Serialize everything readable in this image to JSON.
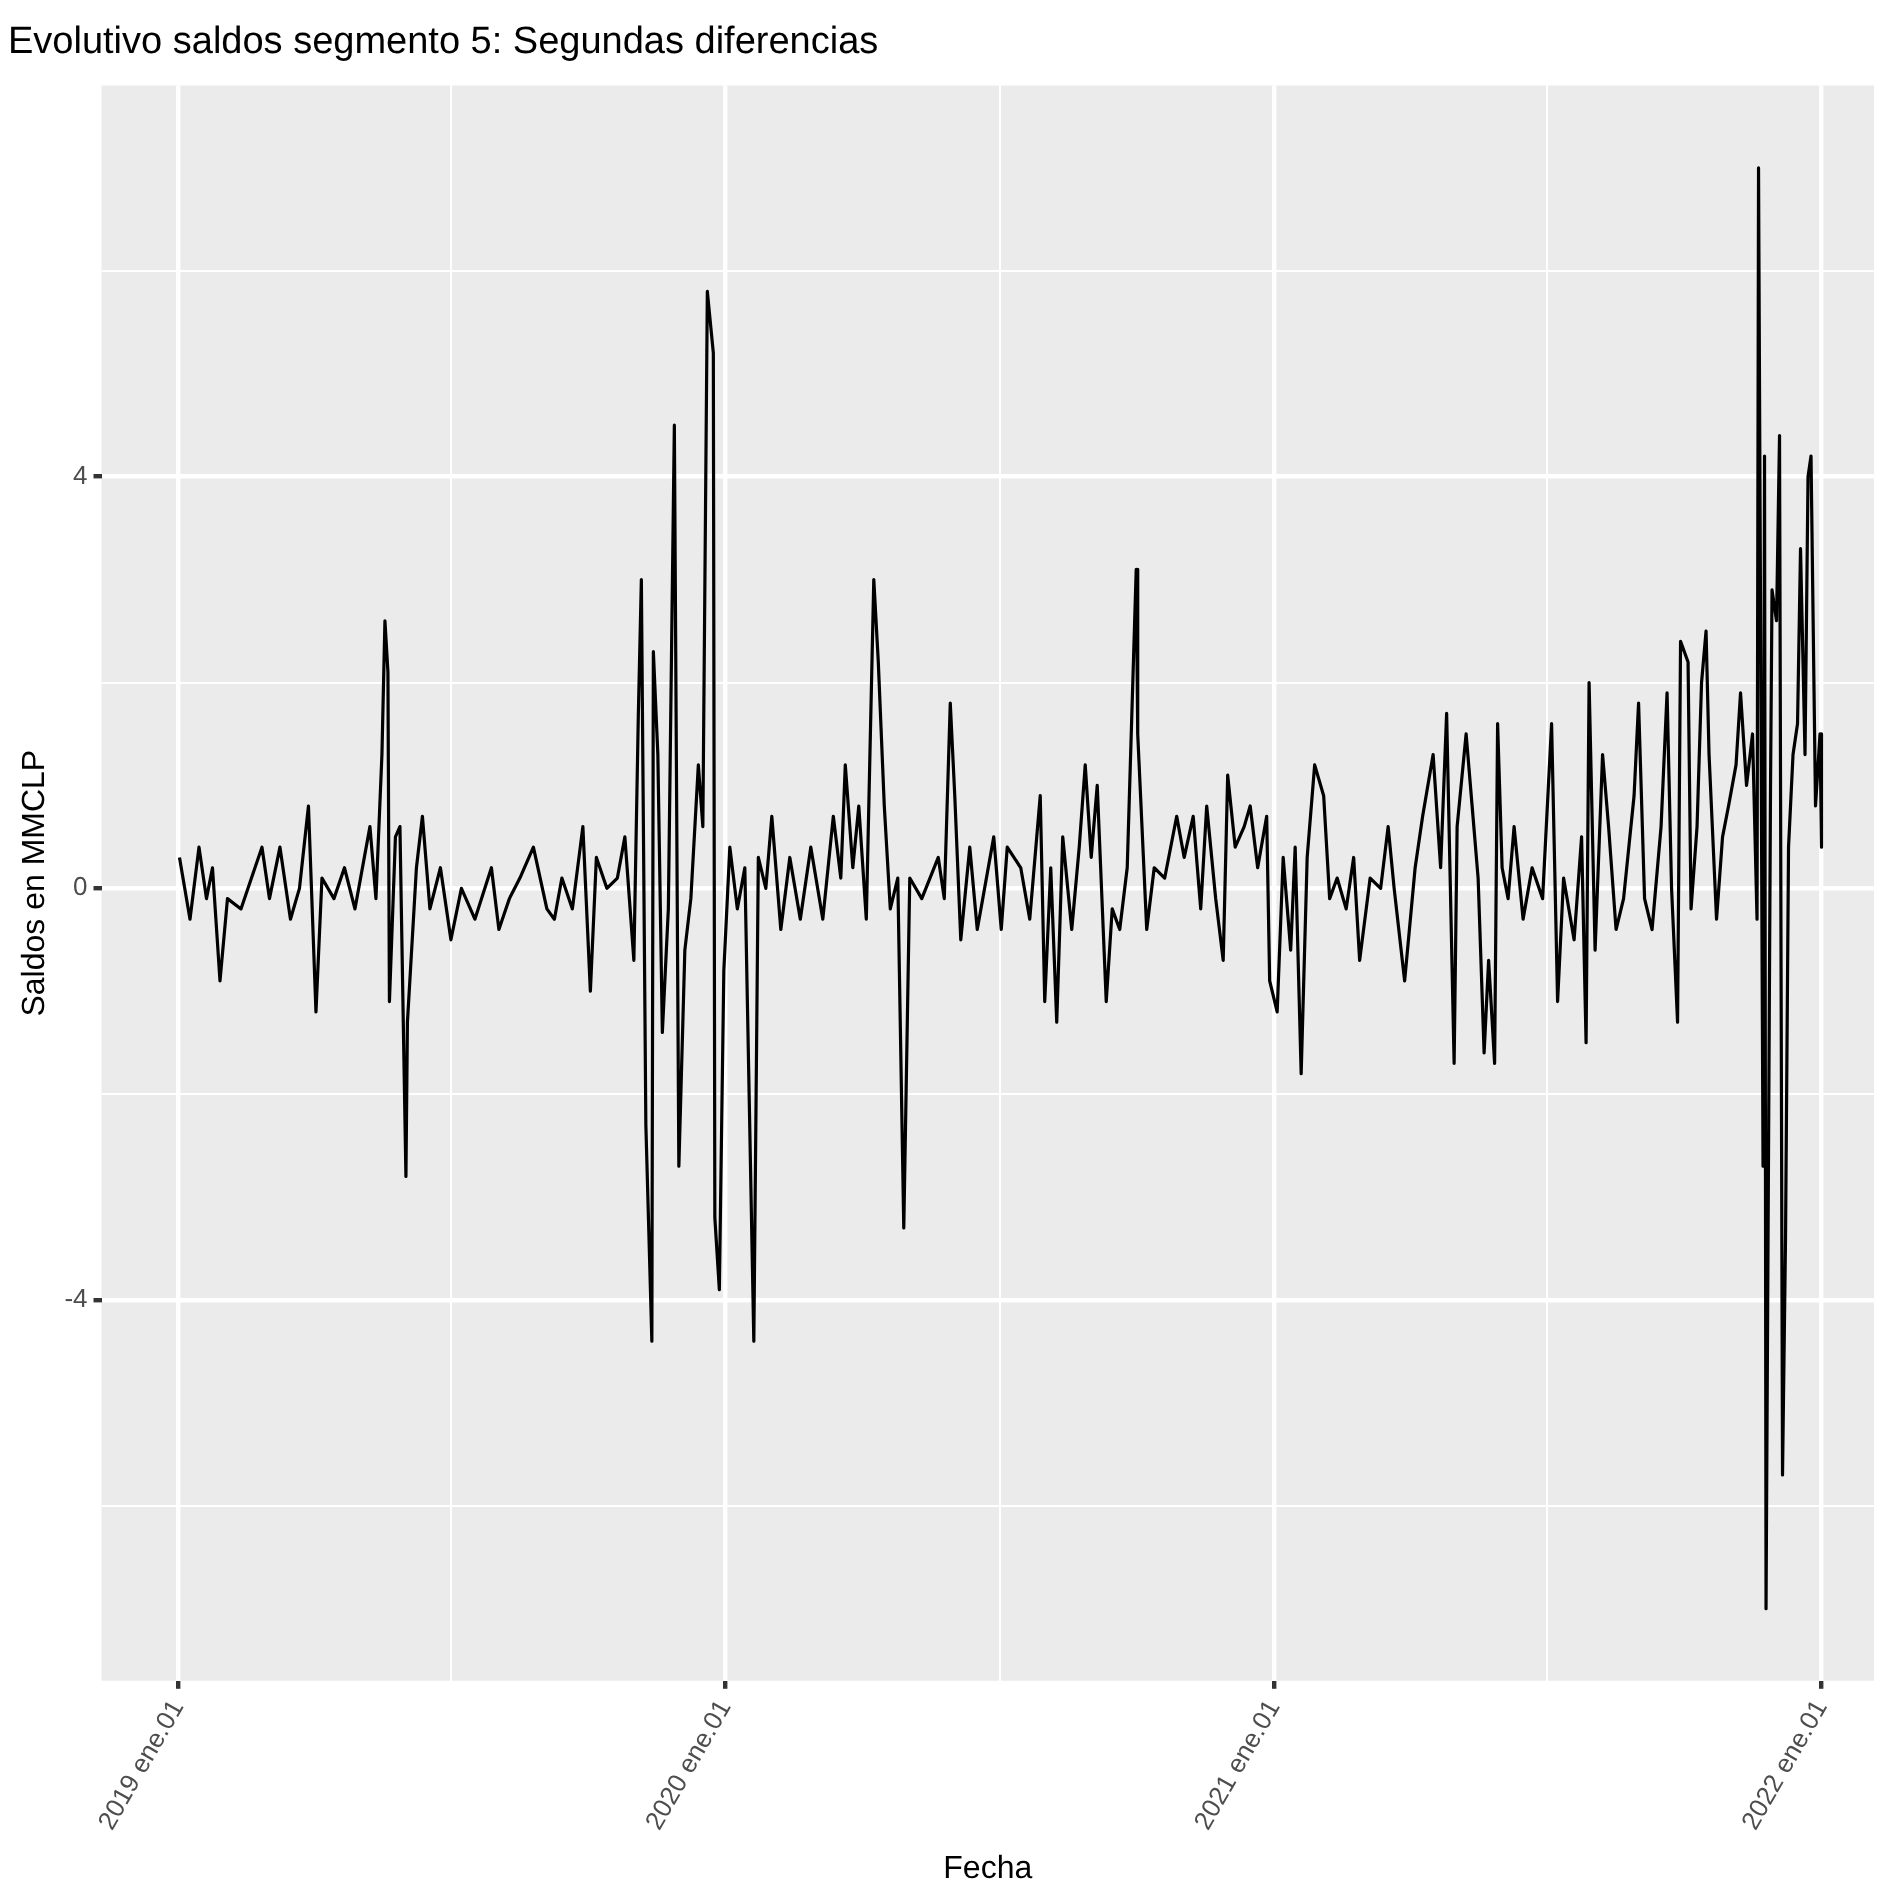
{
  "chart_data": {
    "type": "line",
    "title": "Evolutivo saldos segmento 5: Segundas diferencias",
    "xlabel": "Fecha",
    "ylabel": "Saldos en MMCLP",
    "color": "#000000",
    "marker": "none",
    "grid": true,
    "x": [
      "2019-01-02",
      "2019-01-09",
      "2019-01-15",
      "2019-01-20",
      "2019-01-24",
      "2019-01-29",
      "2019-02-03",
      "2019-02-12",
      "2019-02-19",
      "2019-02-26",
      "2019-03-03",
      "2019-03-10",
      "2019-03-17",
      "2019-03-23",
      "2019-03-29",
      "2019-04-03",
      "2019-04-07",
      "2019-04-15",
      "2019-04-22",
      "2019-04-29",
      "2019-05-09",
      "2019-05-13",
      "2019-05-17",
      "2019-05-19",
      "2019-05-21",
      "2019-05-22",
      "2019-05-26",
      "2019-05-29",
      "2019-06-02",
      "2019-06-03",
      "2019-06-09",
      "2019-06-13",
      "2019-06-18",
      "2019-06-25",
      "2019-07-02",
      "2019-07-09",
      "2019-07-18",
      "2019-07-29",
      "2019-08-03",
      "2019-08-10",
      "2019-08-17",
      "2019-08-26",
      "2019-09-04",
      "2019-09-09",
      "2019-09-14",
      "2019-09-21",
      "2019-09-28",
      "2019-10-03",
      "2019-10-07",
      "2019-10-14",
      "2019-10-21",
      "2019-10-26",
      "2019-11-01",
      "2019-11-04",
      "2019-11-06",
      "2019-11-09",
      "2019-11-13",
      "2019-11-14",
      "2019-11-17",
      "2019-11-20",
      "2019-11-24",
      "2019-11-28",
      "2019-12-01",
      "2019-12-05",
      "2019-12-09",
      "2019-12-14",
      "2019-12-17",
      "2019-12-20",
      "2019-12-22",
      "2019-12-24",
      "2019-12-25",
      "2019-12-28",
      "2019-12-31",
      "2020-01-04",
      "2020-01-09",
      "2020-01-14",
      "2020-01-17",
      "2020-01-20",
      "2020-01-23",
      "2020-01-28",
      "2020-02-01",
      "2020-02-07",
      "2020-02-13",
      "2020-02-20",
      "2020-02-27",
      "2020-03-06",
      "2020-03-13",
      "2020-03-18",
      "2020-03-21",
      "2020-03-26",
      "2020-03-30",
      "2020-04-04",
      "2020-04-09",
      "2020-04-12",
      "2020-04-16",
      "2020-04-20",
      "2020-04-25",
      "2020-04-29",
      "2020-05-03",
      "2020-05-11",
      "2020-05-22",
      "2020-05-26",
      "2020-05-30",
      "2020-06-02",
      "2020-06-06",
      "2020-06-12",
      "2020-06-17",
      "2020-06-28",
      "2020-07-03",
      "2020-07-07",
      "2020-07-16",
      "2020-07-22",
      "2020-07-29",
      "2020-08-01",
      "2020-08-05",
      "2020-08-09",
      "2020-08-13",
      "2020-08-19",
      "2020-08-24",
      "2020-08-28",
      "2020-09-01",
      "2020-09-05",
      "2020-09-11",
      "2020-09-15",
      "2020-09-20",
      "2020-09-25",
      "2020-10-01",
      "2020-10-02",
      "2020-10-08",
      "2020-10-13",
      "2020-10-20",
      "2020-10-28",
      "2020-11-02",
      "2020-11-08",
      "2020-11-13",
      "2020-11-17",
      "2020-11-23",
      "2020-11-28",
      "2020-12-01",
      "2020-12-06",
      "2020-12-12",
      "2020-12-16",
      "2020-12-21",
      "2020-12-27",
      "2020-12-29",
      "2021-01-03",
      "2021-01-07",
      "2021-01-12",
      "2021-01-15",
      "2021-01-19",
      "2021-01-23",
      "2021-01-28",
      "2021-02-03",
      "2021-02-07",
      "2021-02-12",
      "2021-02-18",
      "2021-02-23",
      "2021-02-27",
      "2021-03-06",
      "2021-03-13",
      "2021-03-18",
      "2021-03-22",
      "2021-03-29",
      "2021-04-05",
      "2021-04-10",
      "2021-04-17",
      "2021-04-22",
      "2021-04-26",
      "2021-05-01",
      "2021-05-03",
      "2021-05-09",
      "2021-05-13",
      "2021-05-17",
      "2021-05-21",
      "2021-05-24",
      "2021-05-28",
      "2021-05-30",
      "2021-06-02",
      "2021-06-06",
      "2021-06-10",
      "2021-06-16",
      "2021-06-22",
      "2021-06-29",
      "2021-07-05",
      "2021-07-09",
      "2021-07-13",
      "2021-07-20",
      "2021-07-25",
      "2021-07-28",
      "2021-07-30",
      "2021-08-03",
      "2021-08-08",
      "2021-08-12",
      "2021-08-17",
      "2021-08-22",
      "2021-08-29",
      "2021-09-01",
      "2021-09-05",
      "2021-09-10",
      "2021-09-16",
      "2021-09-20",
      "2021-09-23",
      "2021-09-27",
      "2021-09-29",
      "2021-10-04",
      "2021-10-06",
      "2021-10-10",
      "2021-10-13",
      "2021-10-16",
      "2021-10-18",
      "2021-10-23",
      "2021-10-27",
      "2021-10-31",
      "2021-11-05",
      "2021-11-08",
      "2021-11-12",
      "2021-11-16",
      "2021-11-19",
      "2021-11-20",
      "2021-11-23",
      "2021-11-24",
      "2021-11-25",
      "2021-11-28",
      "2021-11-29",
      "2021-12-02",
      "2021-12-04",
      "2021-12-06",
      "2021-12-08",
      "2021-12-10",
      "2021-12-13",
      "2021-12-16",
      "2021-12-18",
      "2021-12-21",
      "2021-12-23",
      "2021-12-25",
      "2021-12-28",
      "2021-12-31",
      "2022-01-01"
    ],
    "values": [
      0.3,
      -0.3,
      0.4,
      -0.1,
      0.2,
      -0.9,
      -0.1,
      -0.2,
      0.1,
      0.4,
      -0.1,
      0.4,
      -0.3,
      0.0,
      0.8,
      -1.2,
      0.1,
      -0.1,
      0.2,
      -0.2,
      0.6,
      -0.1,
      1.3,
      2.6,
      2.1,
      -1.1,
      0.5,
      0.6,
      -2.8,
      -1.3,
      0.2,
      0.7,
      -0.2,
      0.2,
      -0.5,
      0.0,
      -0.3,
      0.2,
      -0.4,
      -0.1,
      0.1,
      0.4,
      -0.2,
      -0.3,
      0.1,
      -0.2,
      0.6,
      -1.0,
      0.3,
      0.0,
      0.1,
      0.5,
      -0.7,
      1.7,
      3.0,
      -2.3,
      -4.4,
      2.3,
      1.3,
      -1.4,
      -0.2,
      4.5,
      -2.7,
      -0.6,
      -0.1,
      1.2,
      0.6,
      5.8,
      5.5,
      5.2,
      -3.2,
      -3.9,
      -0.8,
      0.4,
      -0.2,
      0.2,
      -2.1,
      -4.4,
      0.3,
      0.0,
      0.7,
      -0.4,
      0.3,
      -0.3,
      0.4,
      -0.3,
      0.7,
      0.1,
      1.2,
      0.2,
      0.8,
      -0.3,
      3.0,
      2.2,
      0.8,
      -0.2,
      0.1,
      -3.3,
      0.1,
      -0.1,
      0.3,
      -0.1,
      1.8,
      0.9,
      -0.5,
      0.4,
      -0.4,
      0.5,
      -0.4,
      0.4,
      0.2,
      -0.3,
      0.9,
      -1.1,
      0.2,
      -1.3,
      0.5,
      -0.4,
      0.4,
      1.2,
      0.3,
      1.0,
      -1.1,
      -0.2,
      -0.4,
      0.2,
      3.1,
      1.5,
      -0.4,
      0.2,
      0.1,
      0.7,
      0.3,
      0.7,
      -0.2,
      0.8,
      -0.1,
      -0.7,
      1.1,
      0.4,
      0.6,
      0.8,
      0.2,
      0.7,
      -0.9,
      -1.2,
      0.3,
      -0.6,
      0.4,
      -1.8,
      0.3,
      1.2,
      0.9,
      -0.1,
      0.1,
      -0.2,
      0.3,
      -0.7,
      0.1,
      0.0,
      0.6,
      0.0,
      -0.9,
      0.2,
      0.7,
      1.3,
      0.2,
      1.7,
      -1.7,
      0.6,
      1.5,
      0.8,
      0.1,
      -1.6,
      -0.7,
      -1.7,
      1.6,
      0.2,
      -0.1,
      0.6,
      -0.3,
      0.2,
      -0.1,
      1.6,
      -1.1,
      0.1,
      -0.5,
      0.5,
      -1.5,
      2.0,
      -0.6,
      1.3,
      0.6,
      -0.4,
      -0.1,
      0.9,
      1.8,
      -0.1,
      -0.4,
      0.6,
      1.9,
      0.0,
      -1.3,
      2.4,
      2.2,
      -0.2,
      0.6,
      2.0,
      2.5,
      1.3,
      -0.3,
      0.5,
      0.8,
      1.2,
      1.9,
      1.0,
      1.5,
      -0.3,
      7.0,
      -2.7,
      4.2,
      -7.0,
      1.0,
      2.9,
      2.6,
      4.4,
      -5.7,
      -3.4,
      0.4,
      1.3,
      1.6,
      3.3,
      1.3,
      4.0,
      4.2,
      0.8,
      1.5,
      0.4
    ],
    "xlim": [
      "2018-11-11",
      "2022-02-05"
    ],
    "ylim": [
      -7.7,
      7.8
    ],
    "xticks": [
      {
        "value": "2019-01-01",
        "label": "2019 ene.01"
      },
      {
        "value": "2019-07-02",
        "label": null
      },
      {
        "value": "2020-01-01",
        "label": "2020 ene.01"
      },
      {
        "value": "2020-07-02",
        "label": null
      },
      {
        "value": "2021-01-01",
        "label": "2021 ene.01"
      },
      {
        "value": "2021-07-02",
        "label": null
      },
      {
        "value": "2022-01-01",
        "label": "2022 ene.01"
      }
    ],
    "yticks": [
      {
        "value": -6,
        "label": null
      },
      -4,
      {
        "value": -2,
        "label": null
      },
      0,
      {
        "value": 2,
        "label": null
      },
      4,
      {
        "value": 6,
        "label": null
      }
    ]
  }
}
